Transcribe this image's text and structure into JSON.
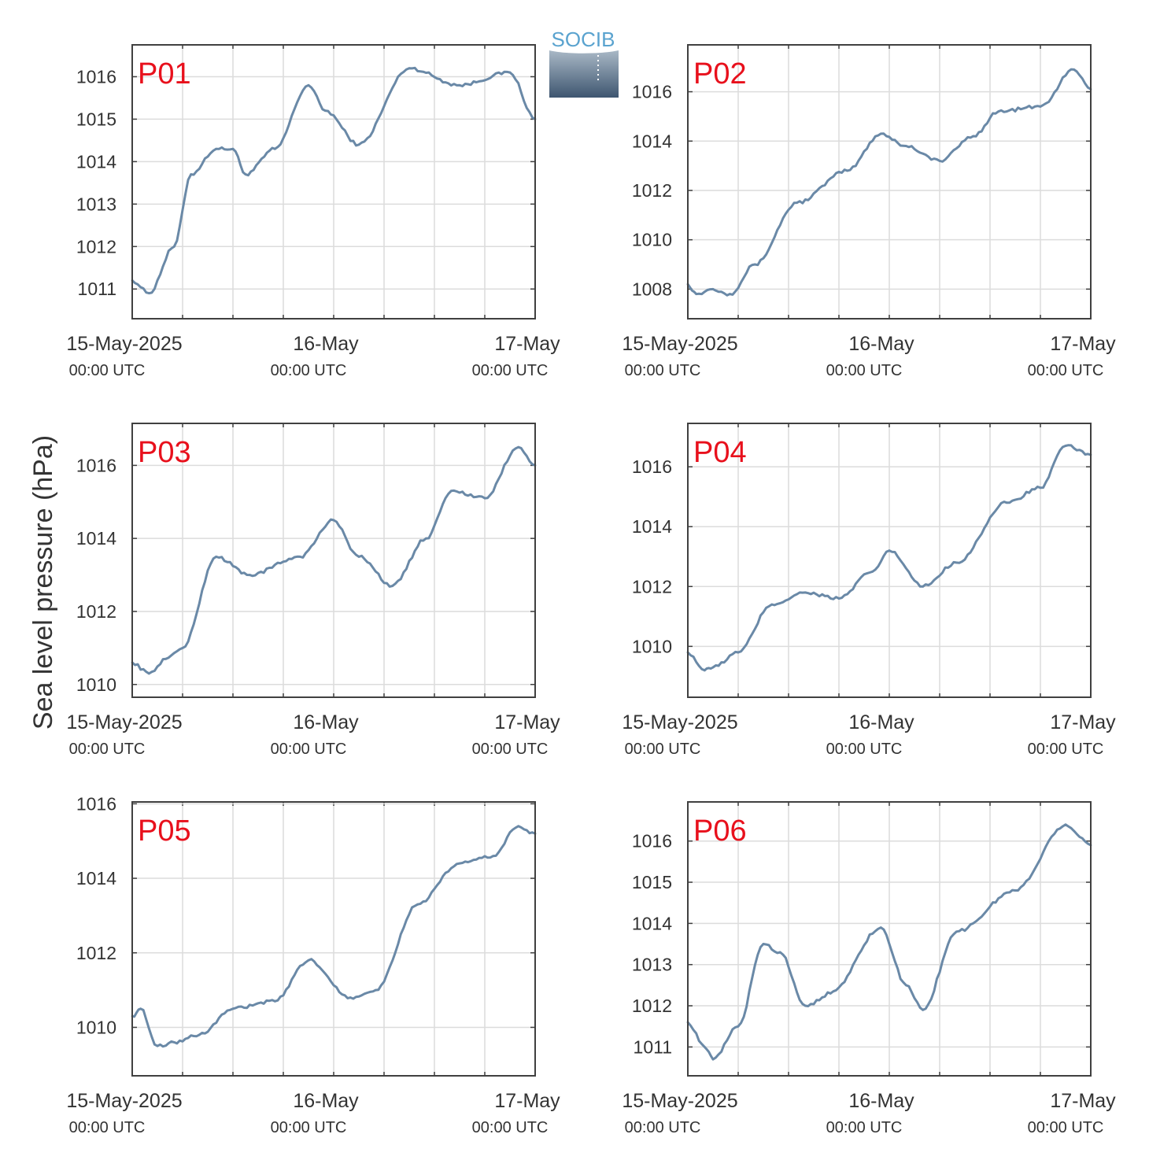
{
  "y_axis_title": "Sea level pressure (hPa)",
  "logo_text": "SOCIB",
  "colors": {
    "line": "#6a89a7",
    "grid": "#dcdcdc",
    "frame": "#404040",
    "panel_label": "#e8101c",
    "logo_blue": "#5aa3cf"
  },
  "chart_data": [
    {
      "type": "line",
      "title": "P01",
      "x_tick_dates": [
        "15-May-2025",
        "16-May",
        "17-May"
      ],
      "x_tick_times": [
        "00:00 UTC",
        "00:00 UTC",
        "00:00 UTC"
      ],
      "yticks": [
        1011,
        1012,
        1013,
        1014,
        1015,
        1016
      ],
      "ylim": [
        1010.3,
        1016.75
      ],
      "xlim": [
        "2025-05-15 00:00",
        "2025-05-17 00:00"
      ],
      "x": [
        "2025-05-15 00:00",
        "2025-05-15 02:00",
        "2025-05-15 05:00",
        "2025-05-15 07:00",
        "2025-05-15 10:00",
        "2025-05-15 12:00",
        "2025-05-15 13:30",
        "2025-05-15 17:00",
        "2025-05-15 21:00",
        "2025-05-15 23:00",
        "2025-05-16 03:00",
        "2025-05-16 09:00",
        "2025-05-16 15:00",
        "2025-05-16 21:00",
        "2025-05-17 00:00"
      ],
      "values": [
        1011.2,
        1010.9,
        1012.0,
        1013.7,
        1014.3,
        1014.3,
        1013.7,
        1014.3,
        1015.8,
        1015.2,
        1014.4,
        1016.2,
        1015.8,
        1016.1,
        1015.0
      ]
    },
    {
      "type": "line",
      "title": "P02",
      "x_tick_dates": [
        "15-May-2025",
        "16-May",
        "17-May"
      ],
      "x_tick_times": [
        "00:00 UTC",
        "00:00 UTC",
        "00:00 UTC"
      ],
      "yticks": [
        1008,
        1010,
        1012,
        1014,
        1016
      ],
      "ylim": [
        1006.8,
        1017.9
      ],
      "xlim": [
        "2025-05-15 00:00",
        "2025-05-17 00:00"
      ],
      "x": [
        "2025-05-15 00:00",
        "2025-05-15 01:00",
        "2025-05-15 03:00",
        "2025-05-15 05:00",
        "2025-05-15 08:00",
        "2025-05-15 13:00",
        "2025-05-15 19:00",
        "2025-05-15 23:00",
        "2025-05-16 02:00",
        "2025-05-16 06:00",
        "2025-05-16 10:00",
        "2025-05-16 13:00",
        "2025-05-16 18:00",
        "2025-05-16 22:00",
        "2025-05-17 00:00"
      ],
      "values": [
        1008.2,
        1007.8,
        1008.0,
        1007.8,
        1009.0,
        1011.5,
        1012.8,
        1014.3,
        1013.8,
        1013.2,
        1014.2,
        1015.2,
        1015.4,
        1016.9,
        1016.1
      ]
    },
    {
      "type": "line",
      "title": "P03",
      "x_tick_dates": [
        "15-May-2025",
        "16-May",
        "17-May"
      ],
      "x_tick_times": [
        "00:00 UTC",
        "00:00 UTC",
        "00:00 UTC"
      ],
      "yticks": [
        1010,
        1012,
        1014,
        1016
      ],
      "ylim": [
        1009.65,
        1017.15
      ],
      "xlim": [
        "2025-05-15 00:00",
        "2025-05-17 00:00"
      ],
      "x": [
        "2025-05-15 00:00",
        "2025-05-15 02:00",
        "2025-05-15 04:00",
        "2025-05-15 06:00",
        "2025-05-15 10:00",
        "2025-05-15 14:00",
        "2025-05-15 20:00",
        "2025-05-16 00:00",
        "2025-05-16 03:00",
        "2025-05-16 07:00",
        "2025-05-16 11:00",
        "2025-05-16 14:00",
        "2025-05-16 18:00",
        "2025-05-16 22:00",
        "2025-05-17 00:00"
      ],
      "values": [
        1010.6,
        1010.3,
        1010.7,
        1011.0,
        1013.5,
        1013.0,
        1013.5,
        1014.5,
        1013.5,
        1012.7,
        1014.0,
        1015.3,
        1015.1,
        1016.5,
        1016.0
      ]
    },
    {
      "type": "line",
      "title": "P04",
      "x_tick_dates": [
        "15-May-2025",
        "16-May",
        "17-May"
      ],
      "x_tick_times": [
        "00:00 UTC",
        "00:00 UTC",
        "00:00 UTC"
      ],
      "yticks": [
        1010,
        1012,
        1014,
        1016
      ],
      "ylim": [
        1008.3,
        1017.45
      ],
      "xlim": [
        "2025-05-15 00:00",
        "2025-05-17 00:00"
      ],
      "x": [
        "2025-05-15 00:00",
        "2025-05-15 02:00",
        "2025-05-15 03:00",
        "2025-05-15 06:00",
        "2025-05-15 10:00",
        "2025-05-15 14:00",
        "2025-05-15 18:00",
        "2025-05-15 22:00",
        "2025-05-16 00:00",
        "2025-05-16 04:00",
        "2025-05-16 08:00",
        "2025-05-16 14:00",
        "2025-05-16 18:00",
        "2025-05-16 21:00",
        "2025-05-17 00:00"
      ],
      "values": [
        1009.8,
        1009.2,
        1009.3,
        1009.8,
        1011.4,
        1011.8,
        1011.6,
        1012.5,
        1013.2,
        1012.0,
        1012.8,
        1014.8,
        1015.3,
        1016.7,
        1016.4
      ]
    },
    {
      "type": "line",
      "title": "P05",
      "x_tick_dates": [
        "15-May-2025",
        "16-May",
        "17-May"
      ],
      "x_tick_times": [
        "00:00 UTC",
        "00:00 UTC",
        "00:00 UTC"
      ],
      "yticks": [
        1010,
        1012,
        1014,
        1016
      ],
      "ylim": [
        1008.7,
        1016.05
      ],
      "xlim": [
        "2025-05-15 00:00",
        "2025-05-17 00:00"
      ],
      "x": [
        "2025-05-15 00:00",
        "2025-05-15 01:00",
        "2025-05-15 03:00",
        "2025-05-15 05:00",
        "2025-05-15 08:00",
        "2025-05-15 12:00",
        "2025-05-15 17:00",
        "2025-05-15 21:00",
        "2025-05-16 02:00",
        "2025-05-16 05:00",
        "2025-05-16 10:00",
        "2025-05-16 15:00",
        "2025-05-16 19:00",
        "2025-05-16 22:00",
        "2025-05-17 00:00"
      ],
      "values": [
        1010.3,
        1010.5,
        1009.5,
        1009.6,
        1009.8,
        1010.5,
        1010.7,
        1011.8,
        1010.8,
        1011.0,
        1013.3,
        1014.4,
        1014.6,
        1015.4,
        1015.2
      ]
    },
    {
      "type": "line",
      "title": "P06",
      "x_tick_dates": [
        "15-May-2025",
        "16-May",
        "17-May"
      ],
      "x_tick_times": [
        "00:00 UTC",
        "00:00 UTC",
        "00:00 UTC"
      ],
      "yticks": [
        1011,
        1012,
        1013,
        1014,
        1015,
        1016
      ],
      "ylim": [
        1010.3,
        1016.95
      ],
      "xlim": [
        "2025-05-15 00:00",
        "2025-05-17 00:00"
      ],
      "x": [
        "2025-05-15 00:00",
        "2025-05-15 02:00",
        "2025-05-15 03:00",
        "2025-05-15 06:00",
        "2025-05-15 09:00",
        "2025-05-15 11:00",
        "2025-05-15 14:00",
        "2025-05-15 17:00",
        "2025-05-15 23:00",
        "2025-05-16 02:00",
        "2025-05-16 04:00",
        "2025-05-16 08:00",
        "2025-05-16 15:00",
        "2025-05-16 21:00",
        "2025-05-17 00:00"
      ],
      "values": [
        1011.6,
        1011.0,
        1010.7,
        1011.5,
        1013.5,
        1013.3,
        1012.0,
        1012.3,
        1013.9,
        1012.5,
        1011.9,
        1013.8,
        1014.8,
        1016.4,
        1015.9
      ]
    }
  ]
}
